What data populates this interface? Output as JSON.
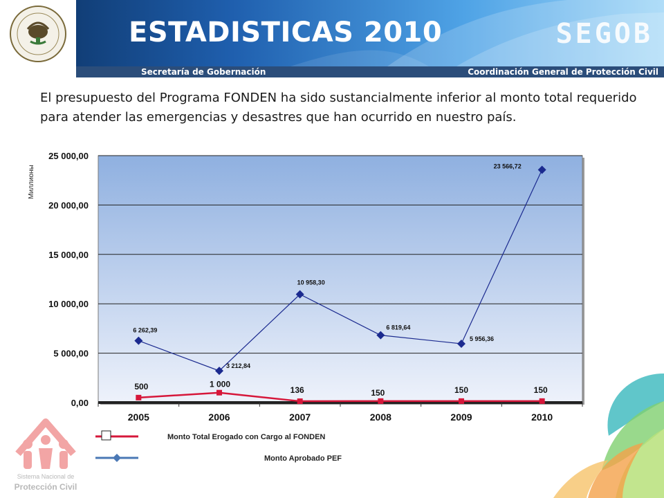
{
  "header": {
    "title": "ESTADISTICAS 2010",
    "brand": "SEGOB",
    "seal_text": "ESTADOS UNIDOS MEXICANOS",
    "left_caption": "Secretaría de Gobernación",
    "right_caption": "Coordinación  General de Protección Civil"
  },
  "intro_text": "El presupuesto del Programa FONDEN ha sido sustancialmente inferior al monto total requerido para atender las emergencias y desastres que han ocurrido en nuestro país.",
  "footer_logo": {
    "caption": "Sistema Nacional de",
    "name": "Protección Civil"
  },
  "colors": {
    "header_dark": "#0a2e5c",
    "header_light": "#9fd6f7",
    "subbar": "#2b4d7a",
    "plot_top": "#8fb0e0",
    "plot_bottom": "#eef2fb",
    "series_red": "#d6173a",
    "series_blue": "#1b2a8f",
    "legend_blue": "#4a78b5",
    "logo_pink": "#f2a5a5"
  },
  "chart_data": {
    "type": "line",
    "ylabel": "Миллионы",
    "xlabel": "",
    "ylim": [
      0,
      25000
    ],
    "yticks": [
      0,
      5000,
      10000,
      15000,
      20000,
      25000
    ],
    "ytick_labels": [
      "0,00",
      "5 000,00",
      "10 000,00",
      "15 000,00",
      "20 000,00",
      "25 000,00"
    ],
    "categories": [
      "2005",
      "2006",
      "2007",
      "2008",
      "2009",
      "2010"
    ],
    "grid": "horizontal",
    "legend_position": "bottom",
    "series": [
      {
        "name": "Monto Aprobado PEF",
        "color": "#1b2a8f",
        "marker": "diamond",
        "values": [
          6262.39,
          3212.84,
          10958.3,
          6819.64,
          5956.36,
          23566.72
        ],
        "labels": [
          "6 262,39",
          "3 212,84",
          "10 958,30",
          "6 819,64",
          "5 956,36",
          "23 566,72"
        ]
      },
      {
        "name": "Monto Total Erogado con Cargo al FONDEN",
        "color": "#d6173a",
        "marker": "square",
        "values": [
          500,
          1000,
          136,
          150,
          150,
          150
        ],
        "labels": [
          "500",
          "1 000",
          "136",
          "150",
          "150",
          "150"
        ]
      }
    ]
  }
}
